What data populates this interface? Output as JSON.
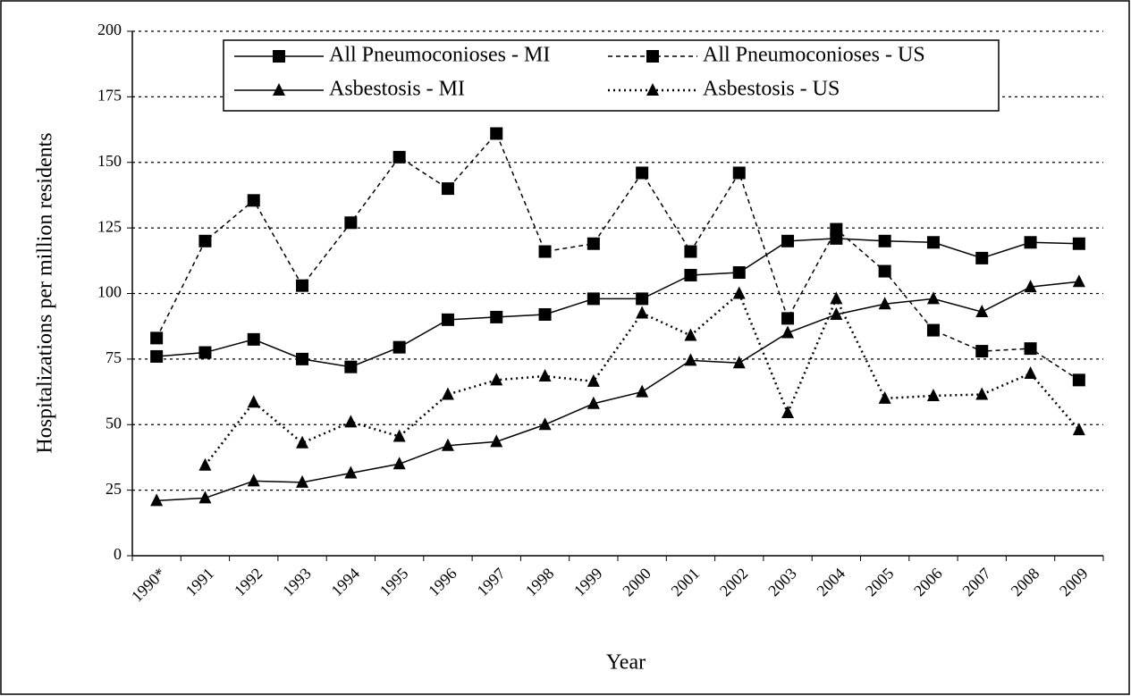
{
  "chart_data": {
    "type": "line",
    "x_label": "Year",
    "y_label": "Hospitalizations per million residents",
    "categories": [
      "1990*",
      "1991",
      "1992",
      "1993",
      "1994",
      "1995",
      "1996",
      "1997",
      "1998",
      "1999",
      "2000",
      "2001",
      "2002",
      "2003",
      "2004",
      "2005",
      "2006",
      "2007",
      "2008",
      "2009"
    ],
    "series": [
      {
        "name": "All Pneumoconioses - MI",
        "color": "#000000",
        "line_style": "solid",
        "marker": "square",
        "values": [
          76,
          77.5,
          82.5,
          75,
          72,
          79.5,
          90,
          91,
          92,
          98,
          98,
          107,
          108,
          120,
          121,
          120,
          119.5,
          113.5,
          119.5,
          119
        ]
      },
      {
        "name": "All Pneumoconioses - US",
        "color": "#000000",
        "line_style": "dashed",
        "marker": "square",
        "values": [
          83,
          120,
          135.5,
          103,
          127,
          152,
          140,
          161,
          116,
          119,
          146,
          116,
          146,
          90.5,
          124.5,
          108.5,
          86,
          78,
          79,
          67
        ]
      },
      {
        "name": "Asbestosis - MI",
        "color": "#000000",
        "line_style": "solid",
        "marker": "triangle",
        "values": [
          21,
          22,
          28.5,
          28,
          31.5,
          35,
          42,
          43.5,
          50,
          58,
          62.5,
          74.5,
          73.5,
          85,
          92,
          96,
          98,
          93,
          102.5,
          104.5
        ]
      },
      {
        "name": "Asbestosis - US",
        "color": "#000000",
        "line_style": "dotted",
        "marker": "triangle",
        "values": [
          null,
          34.5,
          58.5,
          43,
          51,
          45.5,
          61.5,
          67,
          68.5,
          66.5,
          92.5,
          84,
          100,
          54.5,
          98,
          60,
          61,
          61.5,
          69.5,
          48
        ]
      }
    ],
    "ylim": [
      0,
      200
    ],
    "yticks": [
      0,
      25,
      50,
      75,
      100,
      125,
      150,
      175,
      200
    ],
    "grid": true
  }
}
